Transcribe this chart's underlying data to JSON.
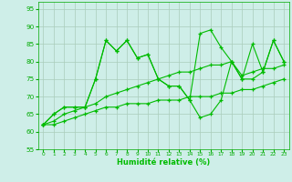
{
  "x": [
    0,
    1,
    2,
    3,
    4,
    5,
    6,
    7,
    8,
    9,
    10,
    11,
    12,
    13,
    14,
    15,
    16,
    17,
    18,
    19,
    20,
    21,
    22,
    23
  ],
  "s1": [
    62,
    65,
    67,
    67,
    67,
    75,
    86,
    83,
    86,
    81,
    82,
    75,
    73,
    73,
    69,
    88,
    89,
    84,
    80,
    75,
    85,
    77,
    86,
    80
  ],
  "s2": [
    62,
    65,
    67,
    67,
    67,
    75,
    86,
    83,
    86,
    81,
    82,
    75,
    73,
    73,
    69,
    64,
    65,
    69,
    80,
    75,
    75,
    77,
    86,
    80
  ],
  "s3": [
    62,
    63,
    65,
    66,
    67,
    68,
    70,
    71,
    72,
    73,
    74,
    75,
    76,
    77,
    77,
    78,
    79,
    79,
    80,
    76,
    77,
    78,
    78,
    79
  ],
  "s4": [
    62,
    62,
    63,
    64,
    65,
    66,
    67,
    67,
    68,
    68,
    68,
    69,
    69,
    69,
    70,
    70,
    70,
    71,
    71,
    72,
    72,
    73,
    74,
    75
  ],
  "line_color": "#00bb00",
  "bg_color": "#ceeee8",
  "grid_color": "#aaccbb",
  "xlabel": "Humidité relative (%)",
  "ylim": [
    55,
    97
  ],
  "xlim": [
    -0.5,
    23.5
  ],
  "yticks": [
    55,
    60,
    65,
    70,
    75,
    80,
    85,
    90,
    95
  ],
  "xticks": [
    0,
    1,
    2,
    3,
    4,
    5,
    6,
    7,
    8,
    9,
    10,
    11,
    12,
    13,
    14,
    15,
    16,
    17,
    18,
    19,
    20,
    21,
    22,
    23
  ]
}
